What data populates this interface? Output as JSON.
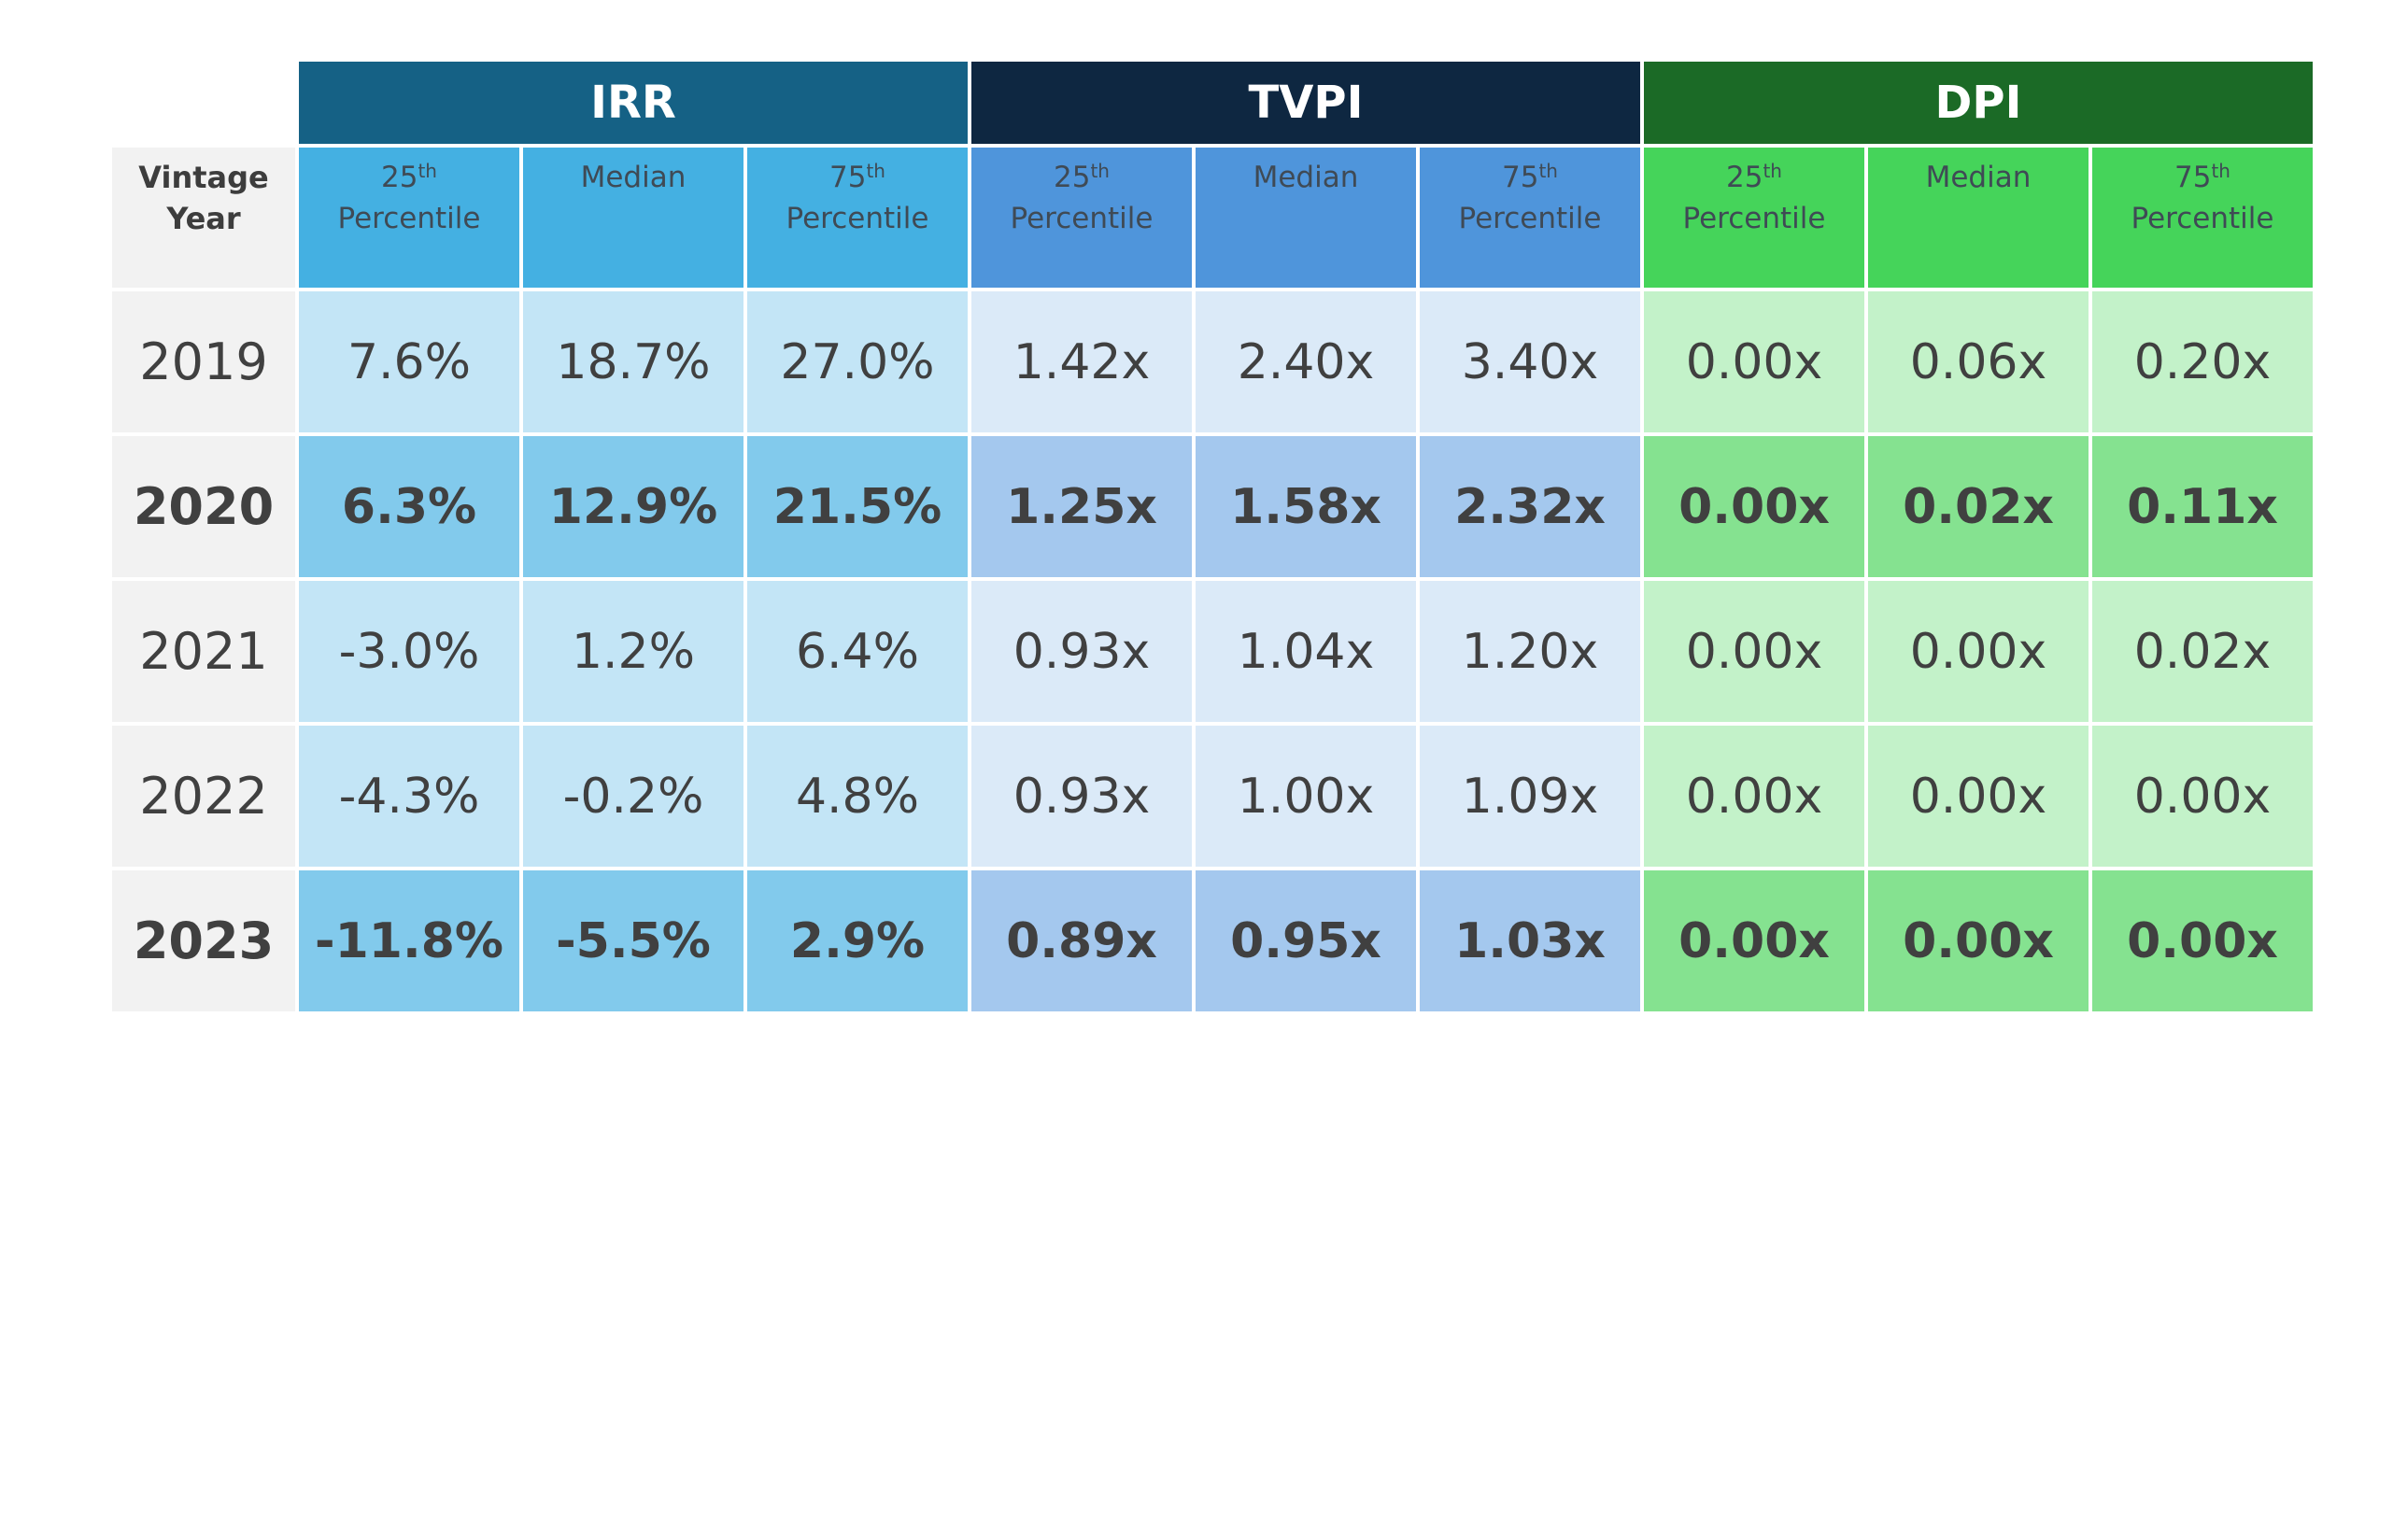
{
  "chart_data": {
    "type": "table",
    "corner_header": [
      "Vintage",
      "Year"
    ],
    "groups": [
      {
        "name": "IRR",
        "color": "#156185",
        "sub_color": "#44b0e2",
        "light_color": "#c3e5f6",
        "dark_color": "#82caec"
      },
      {
        "name": "TVPI",
        "color": "#0e2741",
        "sub_color": "#4f95db",
        "light_color": "#dbeaf8",
        "dark_color": "#a4c8ee"
      },
      {
        "name": "DPI",
        "color": "#1b6a26",
        "sub_color": "#45d45a",
        "light_color": "#c3f2c9",
        "dark_color": "#85e290"
      }
    ],
    "subcolumns": [
      {
        "base": "25",
        "sup": "th",
        "line2": "Percentile"
      },
      {
        "base": "Median",
        "sup": "",
        "line2": ""
      },
      {
        "base": "75",
        "sup": "th",
        "line2": "Percentile"
      }
    ],
    "rows": [
      {
        "year": "2019",
        "bold": false,
        "values": [
          "7.6%",
          "18.7%",
          "27.0%",
          "1.42x",
          "2.40x",
          "3.40x",
          "0.00x",
          "0.06x",
          "0.20x"
        ]
      },
      {
        "year": "2020",
        "bold": true,
        "values": [
          "6.3%",
          "12.9%",
          "21.5%",
          "1.25x",
          "1.58x",
          "2.32x",
          "0.00x",
          "0.02x",
          "0.11x"
        ]
      },
      {
        "year": "2021",
        "bold": false,
        "values": [
          "-3.0%",
          "1.2%",
          "6.4%",
          "0.93x",
          "1.04x",
          "1.20x",
          "0.00x",
          "0.00x",
          "0.02x"
        ]
      },
      {
        "year": "2022",
        "bold": false,
        "values": [
          "-4.3%",
          "-0.2%",
          "4.8%",
          "0.93x",
          "1.00x",
          "1.09x",
          "0.00x",
          "0.00x",
          "0.00x"
        ]
      },
      {
        "year": "2023",
        "bold": true,
        "values": [
          "-11.8%",
          "-5.5%",
          "2.9%",
          "0.89x",
          "0.95x",
          "1.03x",
          "0.00x",
          "0.00x",
          "0.00x"
        ]
      }
    ]
  }
}
